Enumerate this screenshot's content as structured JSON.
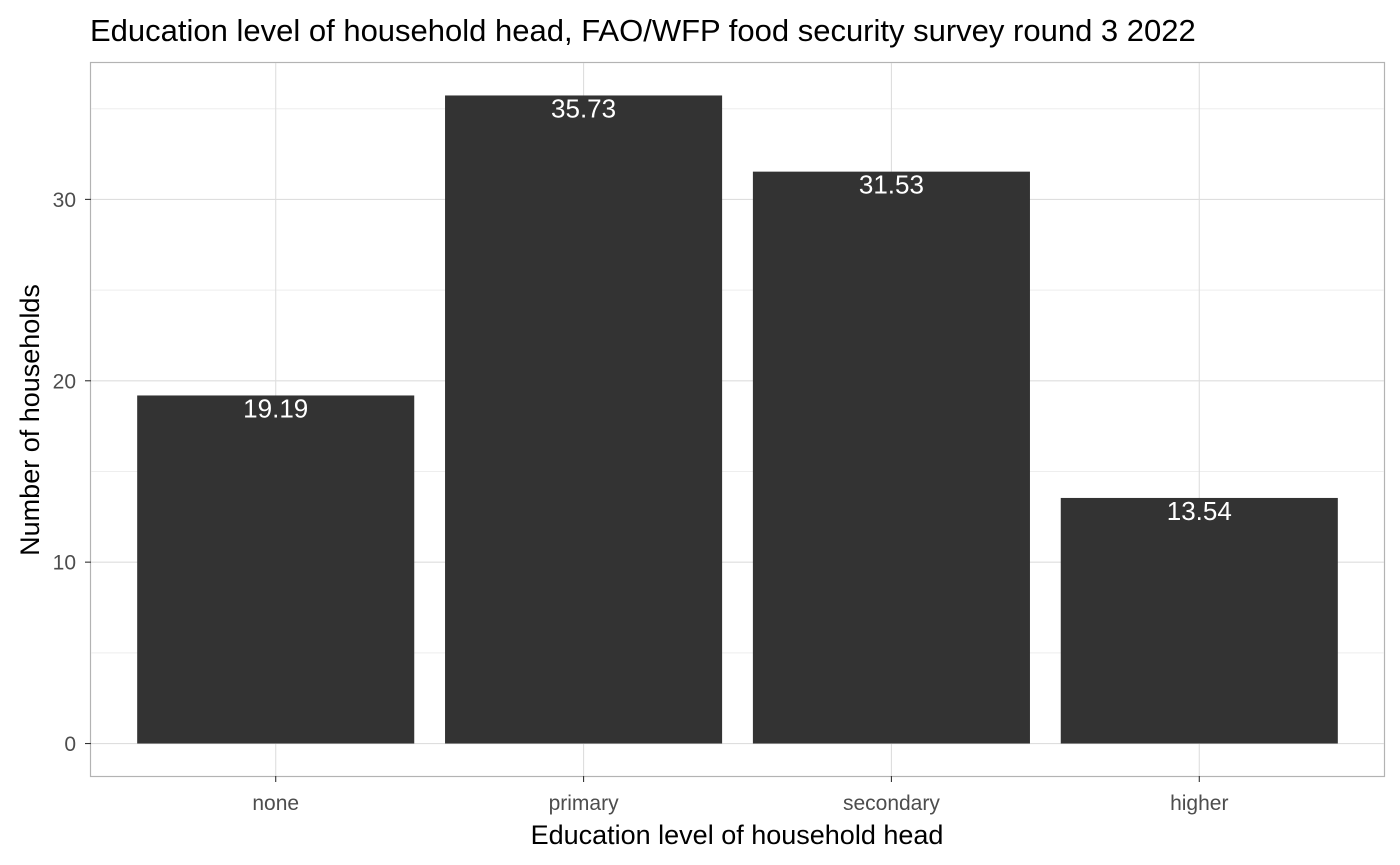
{
  "chart_data": {
    "type": "bar",
    "title": "Education level of household head, FAO/WFP food security survey round 3 2022",
    "xlabel": "Education level of household head",
    "ylabel": "Number of households",
    "categories": [
      "none",
      "primary",
      "secondary",
      "higher"
    ],
    "values": [
      19.19,
      35.73,
      31.53,
      13.54
    ],
    "data_labels": [
      "19.19",
      "35.73",
      "31.53",
      "13.54"
    ],
    "ylim": [
      -1.79,
      37.52
    ],
    "yticks": [
      0,
      10,
      20,
      30
    ],
    "ytick_labels": [
      "0",
      "10",
      "20",
      "30"
    ],
    "grid": true,
    "legend": "none",
    "colors": {
      "bar": "#333333",
      "panel_border": "#b3b3b3",
      "grid_major": "#dedede",
      "grid_minor": "#eeeeee",
      "data_label": "#ffffff",
      "tick_label": "#4d4d4d"
    }
  }
}
